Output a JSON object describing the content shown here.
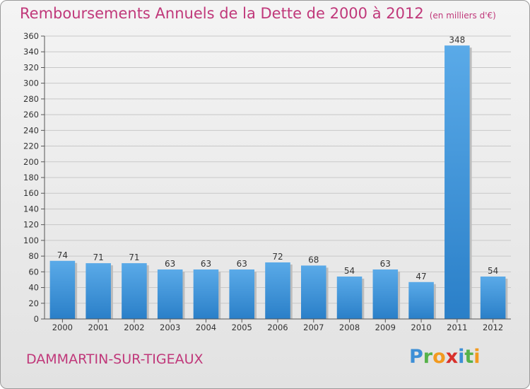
{
  "title": "Remboursements Annuels de la Dette de 2000 à 2012",
  "unit": "(en milliers d'€)",
  "commune": "DAMMARTIN-SUR-TIGEAUX",
  "logo": {
    "letters": [
      "P",
      "r",
      "o",
      "x",
      "i",
      "t",
      "i"
    ],
    "colors": [
      "#3d8fd6",
      "#56b24a",
      "#f29a1f",
      "#d8312c",
      "#3d8fd6",
      "#56b24a",
      "#f29a1f"
    ]
  },
  "colors": {
    "accent": "#c0387a",
    "bar_light": "#5aaae8",
    "bar_dark": "#2a7fc8"
  },
  "chart_data": {
    "type": "bar",
    "categories": [
      "2000",
      "2001",
      "2002",
      "2003",
      "2004",
      "2005",
      "2006",
      "2007",
      "2008",
      "2009",
      "2010",
      "2011",
      "2012"
    ],
    "values": [
      74,
      71,
      71,
      63,
      63,
      63,
      72,
      68,
      54,
      63,
      47,
      348,
      54
    ],
    "data_labels": [
      "74",
      "71",
      "71",
      "63",
      "63",
      "63",
      "72",
      "68",
      "54",
      "63",
      "47",
      "348",
      "54"
    ],
    "ylim": [
      0,
      360
    ],
    "yticks": [
      "0",
      "20",
      "40",
      "60",
      "80",
      "100",
      "120",
      "140",
      "160",
      "180",
      "200",
      "220",
      "240",
      "260",
      "280",
      "300",
      "320",
      "340",
      "360"
    ],
    "grid": true,
    "legend": "none"
  }
}
